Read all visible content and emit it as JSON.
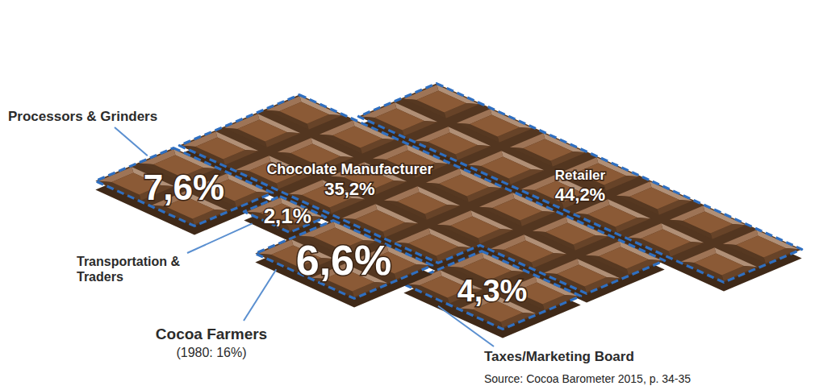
{
  "chart_data": {
    "type": "treemap",
    "categories": [
      "Processors & Grinders",
      "Transportation & Traders",
      "Cocoa Farmers",
      "Taxes/Marketing Board",
      "Chocolate Manufacturer",
      "Retailer"
    ],
    "values": [
      7.6,
      2.1,
      6.6,
      4.3,
      35.2,
      44.2
    ],
    "value_labels": [
      "7,6%",
      "2,1%",
      "6,6%",
      "4,3%",
      "35,2%",
      "44,2%"
    ],
    "data_labels": true,
    "color": "#8b5a36",
    "annotations": [
      {
        "category": "Cocoa Farmers",
        "text": "(1980: 16%)"
      }
    ],
    "source": "Source: Cocoa Barometer 2015, p. 34-35"
  }
}
